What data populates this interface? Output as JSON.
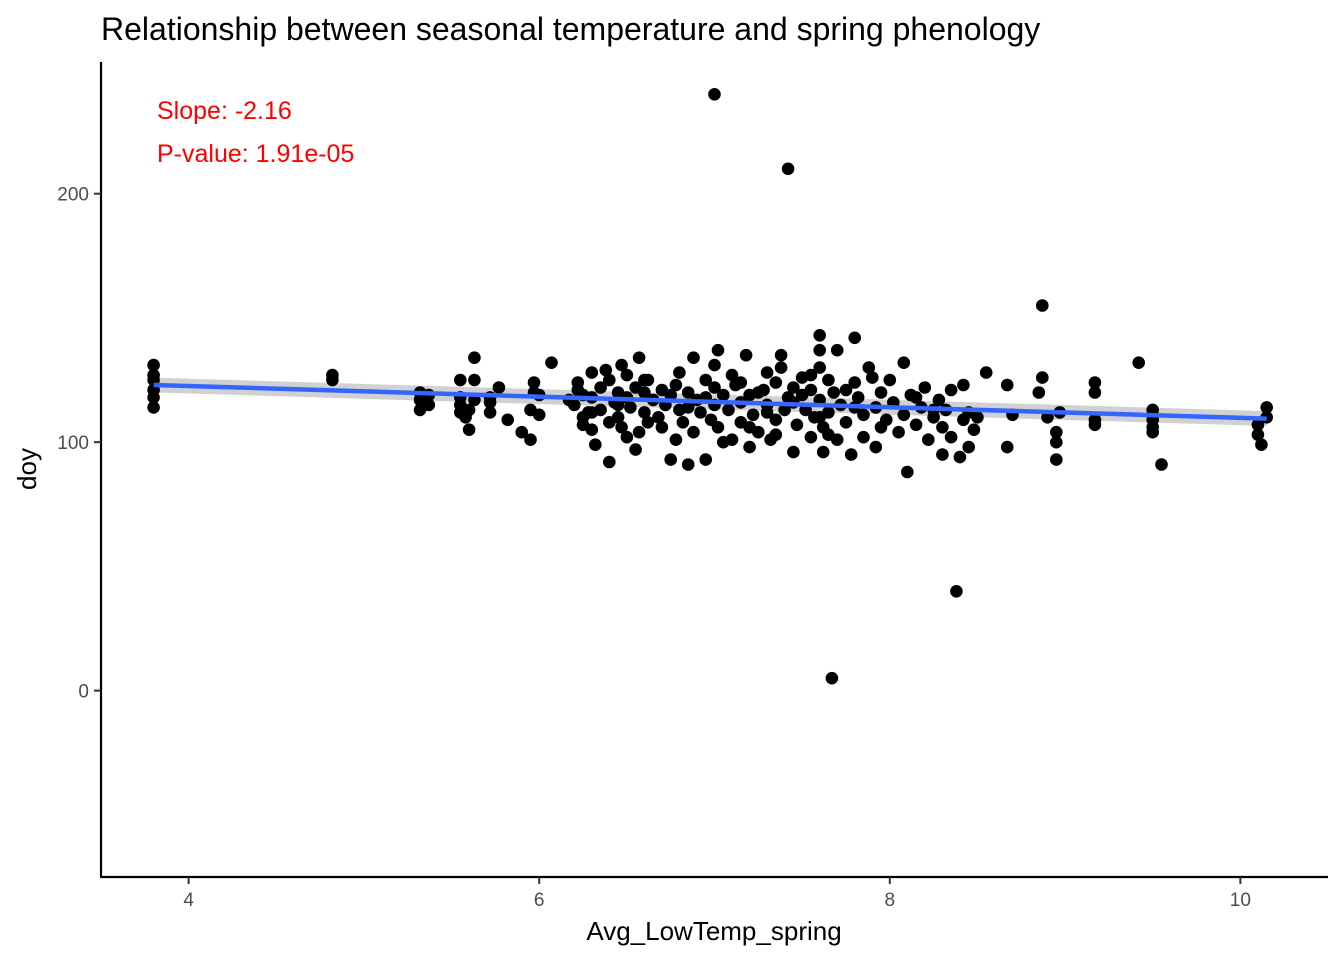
{
  "chart_data": {
    "type": "scatter",
    "title": "Relationship between seasonal temperature and spring phenology",
    "xlabel": "Avg_LowTemp_spring",
    "ylabel": "doy",
    "xlim": [
      3.5,
      10.5
    ],
    "ylim": [
      -75,
      253
    ],
    "xticks": [
      4,
      6,
      8,
      10
    ],
    "yticks": [
      0,
      100,
      200
    ],
    "grid": false,
    "annotations": [
      "Slope: -2.16",
      "P-value: 1.91e-05"
    ],
    "annotation_color": "#ff0000",
    "point_color": "#000000",
    "fit_color": "#3366ff",
    "fit_line": {
      "x": [
        3.8,
        10.15
      ],
      "y": [
        123.0,
        109.5
      ]
    },
    "fit_band": {
      "x": [
        3.8,
        10.15
      ],
      "y_lower": [
        120.0,
        106.5
      ],
      "y_upper": [
        126.0,
        112.5
      ]
    },
    "points": [
      [
        3.8,
        131
      ],
      [
        3.8,
        127
      ],
      [
        3.8,
        125
      ],
      [
        3.8,
        121
      ],
      [
        3.8,
        118
      ],
      [
        3.8,
        114
      ],
      [
        4.82,
        127
      ],
      [
        4.82,
        125
      ],
      [
        5.32,
        120
      ],
      [
        5.32,
        117
      ],
      [
        5.32,
        113
      ],
      [
        5.37,
        115
      ],
      [
        5.37,
        119
      ],
      [
        5.55,
        125
      ],
      [
        5.55,
        118
      ],
      [
        5.55,
        115
      ],
      [
        5.55,
        112
      ],
      [
        5.58,
        110
      ],
      [
        5.6,
        105
      ],
      [
        5.6,
        113
      ],
      [
        5.63,
        117
      ],
      [
        5.63,
        125
      ],
      [
        5.63,
        134
      ],
      [
        5.72,
        118
      ],
      [
        5.72,
        112
      ],
      [
        5.72,
        116
      ],
      [
        5.77,
        122
      ],
      [
        5.82,
        109
      ],
      [
        5.9,
        104
      ],
      [
        5.95,
        101
      ],
      [
        5.95,
        113
      ],
      [
        5.97,
        124
      ],
      [
        5.97,
        120
      ],
      [
        6.0,
        119
      ],
      [
        6.0,
        111
      ],
      [
        6.07,
        132
      ],
      [
        6.17,
        117
      ],
      [
        6.2,
        115
      ],
      [
        6.22,
        121
      ],
      [
        6.22,
        124
      ],
      [
        6.25,
        110
      ],
      [
        6.25,
        107
      ],
      [
        6.28,
        112
      ],
      [
        6.3,
        128
      ],
      [
        6.3,
        118
      ],
      [
        6.3,
        105
      ],
      [
        6.32,
        99
      ],
      [
        6.35,
        113
      ],
      [
        6.35,
        122
      ],
      [
        6.38,
        129
      ],
      [
        6.4,
        125
      ],
      [
        6.4,
        108
      ],
      [
        6.4,
        92
      ],
      [
        6.43,
        116
      ],
      [
        6.45,
        120
      ],
      [
        6.45,
        110
      ],
      [
        6.47,
        131
      ],
      [
        6.47,
        106
      ],
      [
        6.5,
        127
      ],
      [
        6.5,
        118
      ],
      [
        6.5,
        102
      ],
      [
        6.52,
        114
      ],
      [
        6.55,
        97
      ],
      [
        6.55,
        122
      ],
      [
        6.57,
        134
      ],
      [
        6.57,
        104
      ],
      [
        6.6,
        112
      ],
      [
        6.6,
        125
      ],
      [
        6.6,
        120
      ],
      [
        6.62,
        108
      ],
      [
        6.65,
        117
      ],
      [
        6.68,
        110
      ],
      [
        6.7,
        106
      ],
      [
        6.72,
        115
      ],
      [
        6.75,
        119
      ],
      [
        6.75,
        93
      ],
      [
        6.78,
        123
      ],
      [
        6.78,
        101
      ],
      [
        6.8,
        128
      ],
      [
        6.8,
        113
      ],
      [
        6.82,
        108
      ],
      [
        6.85,
        91
      ],
      [
        6.85,
        120
      ],
      [
        6.88,
        134
      ],
      [
        6.88,
        104
      ],
      [
        6.9,
        117
      ],
      [
        6.92,
        112
      ],
      [
        6.95,
        93
      ],
      [
        6.95,
        125
      ],
      [
        6.98,
        109
      ],
      [
        7.0,
        131
      ],
      [
        7.0,
        122
      ],
      [
        7.0,
        115
      ],
      [
        7.02,
        137
      ],
      [
        7.02,
        106
      ],
      [
        7.05,
        119
      ],
      [
        7.08,
        113
      ],
      [
        7.1,
        101
      ],
      [
        7.1,
        127
      ],
      [
        7.12,
        123
      ],
      [
        7.15,
        116
      ],
      [
        7.15,
        108
      ],
      [
        7.18,
        135
      ],
      [
        7.2,
        98
      ],
      [
        7.2,
        119
      ],
      [
        7.22,
        111
      ],
      [
        7.25,
        104
      ],
      [
        7.28,
        121
      ],
      [
        7.3,
        115
      ],
      [
        7.3,
        128
      ],
      [
        7.32,
        101
      ],
      [
        7.35,
        124
      ],
      [
        7.35,
        109
      ],
      [
        7.38,
        135
      ],
      [
        7.38,
        130
      ],
      [
        7.4,
        113
      ],
      [
        7.42,
        118
      ],
      [
        7.45,
        122
      ],
      [
        7.45,
        96
      ],
      [
        7.47,
        107
      ],
      [
        7.5,
        126
      ],
      [
        7.5,
        119
      ],
      [
        7.52,
        113
      ],
      [
        7.55,
        102
      ],
      [
        7.55,
        121
      ],
      [
        7.57,
        110
      ],
      [
        7.6,
        143
      ],
      [
        7.6,
        137
      ],
      [
        7.6,
        130
      ],
      [
        7.6,
        117
      ],
      [
        7.62,
        96
      ],
      [
        7.62,
        106
      ],
      [
        7.65,
        125
      ],
      [
        7.65,
        112
      ],
      [
        7.68,
        120
      ],
      [
        7.7,
        137
      ],
      [
        7.7,
        101
      ],
      [
        7.72,
        115
      ],
      [
        7.75,
        108
      ],
      [
        7.78,
        95
      ],
      [
        7.8,
        142
      ],
      [
        7.8,
        124
      ],
      [
        7.82,
        118
      ],
      [
        7.85,
        102
      ],
      [
        7.85,
        111
      ],
      [
        7.88,
        130
      ],
      [
        7.9,
        126
      ],
      [
        7.92,
        98
      ],
      [
        7.92,
        114
      ],
      [
        7.95,
        120
      ],
      [
        7.98,
        109
      ],
      [
        8.0,
        125
      ],
      [
        8.02,
        116
      ],
      [
        8.05,
        104
      ],
      [
        8.08,
        132
      ],
      [
        8.08,
        111
      ],
      [
        8.1,
        88
      ],
      [
        8.12,
        119
      ],
      [
        8.15,
        107
      ],
      [
        8.18,
        114
      ],
      [
        8.2,
        122
      ],
      [
        8.22,
        101
      ],
      [
        8.25,
        110
      ],
      [
        8.28,
        117
      ],
      [
        8.3,
        95
      ],
      [
        8.3,
        106
      ],
      [
        8.32,
        113
      ],
      [
        8.35,
        121
      ],
      [
        8.35,
        102
      ],
      [
        8.38,
        40
      ],
      [
        8.4,
        94
      ],
      [
        8.42,
        123
      ],
      [
        8.42,
        109
      ],
      [
        8.45,
        112
      ],
      [
        8.45,
        98
      ],
      [
        8.48,
        105
      ],
      [
        8.5,
        110
      ],
      [
        8.55,
        128
      ],
      [
        8.67,
        123
      ],
      [
        8.67,
        98
      ],
      [
        8.7,
        111
      ],
      [
        8.85,
        120
      ],
      [
        8.87,
        155
      ],
      [
        8.87,
        126
      ],
      [
        8.9,
        110
      ],
      [
        8.95,
        93
      ],
      [
        8.95,
        104
      ],
      [
        8.95,
        100
      ],
      [
        8.97,
        112
      ],
      [
        9.17,
        124
      ],
      [
        9.17,
        120
      ],
      [
        9.17,
        109
      ],
      [
        9.17,
        107
      ],
      [
        9.42,
        132
      ],
      [
        9.5,
        113
      ],
      [
        9.5,
        109
      ],
      [
        9.5,
        106
      ],
      [
        9.5,
        104
      ],
      [
        9.55,
        91
      ],
      [
        10.1,
        107
      ],
      [
        10.1,
        103
      ],
      [
        10.12,
        99
      ],
      [
        10.15,
        114
      ],
      [
        10.15,
        110
      ],
      [
        7.2,
        106
      ],
      [
        7.3,
        112
      ],
      [
        7.45,
        116
      ],
      [
        6.95,
        118
      ],
      [
        7.15,
        124
      ],
      [
        7.55,
        127
      ],
      [
        7.75,
        121
      ],
      [
        6.7,
        121
      ],
      [
        6.62,
        125
      ],
      [
        7.05,
        100
      ],
      [
        7.35,
        103
      ],
      [
        7.6,
        110
      ],
      [
        7.8,
        114
      ],
      [
        7.25,
        120
      ],
      [
        6.85,
        114
      ],
      [
        6.45,
        115
      ],
      [
        6.3,
        112
      ],
      [
        6.25,
        119
      ],
      [
        7.65,
        103
      ],
      [
        7.95,
        106
      ],
      [
        8.15,
        118
      ],
      [
        8.25,
        113
      ],
      [
        7.0,
        240
      ],
      [
        7.42,
        210
      ],
      [
        7.67,
        5
      ]
    ]
  }
}
